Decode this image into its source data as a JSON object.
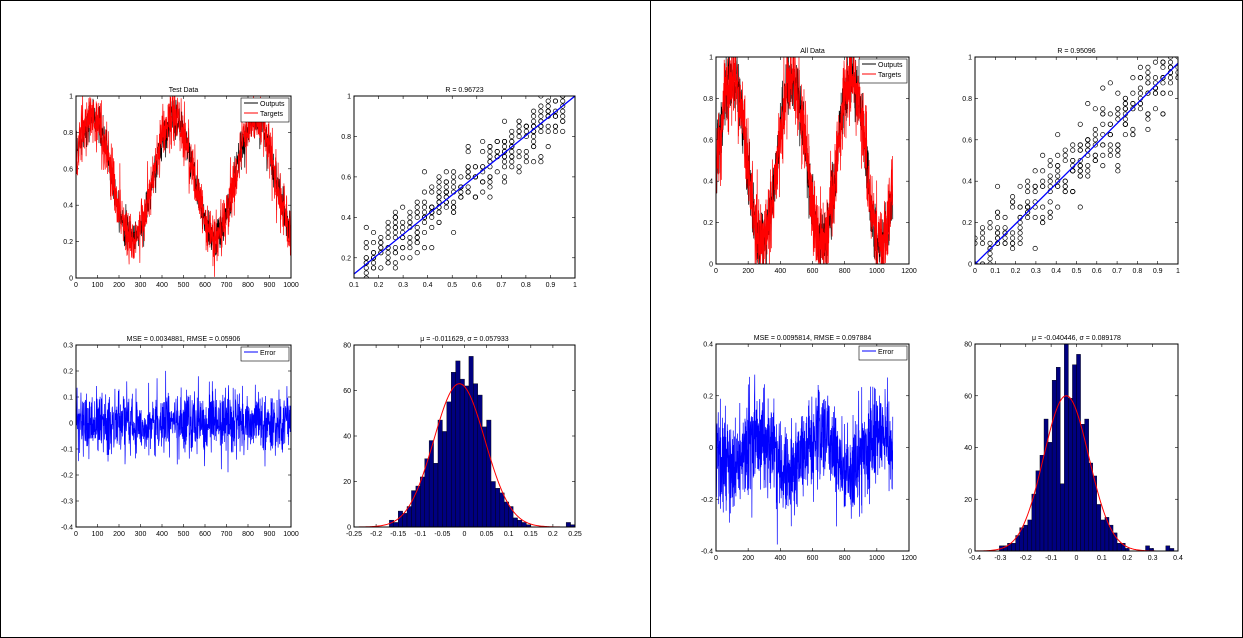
{
  "left": {
    "test_series": {
      "title": "Test Data",
      "legend": [
        "Outputs",
        "Targets"
      ],
      "colors": {
        "outputs": "#000000",
        "targets": "#ff0000"
      },
      "x_ticks": [
        "0",
        "100",
        "200",
        "300",
        "400",
        "500",
        "600",
        "700",
        "800",
        "900",
        "1000"
      ],
      "y_ticks": [
        "0",
        "0.2",
        "0.4",
        "0.6",
        "0.8",
        "1"
      ]
    },
    "test_regression": {
      "title": "R = 0.96723",
      "fit_color": "#0000ff",
      "x_ticks": [
        "0.1",
        "0.2",
        "0.3",
        "0.4",
        "0.5",
        "0.6",
        "0.7",
        "0.8",
        "0.9",
        "1"
      ],
      "y_ticks": [
        "0.2",
        "0.4",
        "0.6",
        "0.8",
        "1"
      ]
    },
    "test_error": {
      "title": "MSE = 0.0034881, RMSE = 0.05906",
      "legend": [
        "Error"
      ],
      "color": "#0000ff",
      "x_ticks": [
        "0",
        "100",
        "200",
        "300",
        "400",
        "500",
        "600",
        "700",
        "800",
        "900",
        "1000"
      ],
      "y_ticks": [
        "-0.4",
        "-0.3",
        "-0.2",
        "-0.1",
        "0",
        "0.1",
        "0.2",
        "0.3"
      ]
    },
    "test_histogram": {
      "title": "μ = -0.011629, σ = 0.057933",
      "bar_color": "#000080",
      "curve_color": "#ff0000",
      "x_ticks": [
        "-0.25",
        "-0.2",
        "-0.15",
        "-0.1",
        "-0.05",
        "0",
        "0.05",
        "0.1",
        "0.15",
        "0.2",
        "0.25"
      ],
      "y_ticks": [
        "0",
        "20",
        "40",
        "60",
        "80"
      ]
    }
  },
  "right": {
    "all_series": {
      "title": "All Data",
      "legend": [
        "Outputs",
        "Targets"
      ],
      "colors": {
        "outputs": "#000000",
        "targets": "#ff0000"
      },
      "x_ticks": [
        "0",
        "200",
        "400",
        "600",
        "800",
        "1000",
        "1200"
      ],
      "y_ticks": [
        "0",
        "0.2",
        "0.4",
        "0.6",
        "0.8",
        "1"
      ]
    },
    "all_regression": {
      "title": "R = 0.95096",
      "fit_color": "#0000ff",
      "x_ticks": [
        "0",
        "0.1",
        "0.2",
        "0.3",
        "0.4",
        "0.5",
        "0.6",
        "0.7",
        "0.8",
        "0.9",
        "1"
      ],
      "y_ticks": [
        "0",
        "0.2",
        "0.4",
        "0.6",
        "0.8",
        "1"
      ]
    },
    "all_error": {
      "title": "MSE = 0.0095814, RMSE = 0.097884",
      "legend": [
        "Error"
      ],
      "color": "#0000ff",
      "x_ticks": [
        "0",
        "200",
        "400",
        "600",
        "800",
        "1000",
        "1200"
      ],
      "y_ticks": [
        "-0.4",
        "-0.2",
        "0",
        "0.2",
        "0.4"
      ]
    },
    "all_histogram": {
      "title": "μ = -0.040446, σ = 0.089178",
      "bar_color": "#000080",
      "curve_color": "#ff0000",
      "x_ticks": [
        "-0.4",
        "-0.3",
        "-0.2",
        "-0.1",
        "0",
        "0.1",
        "0.2",
        "0.3",
        "0.4"
      ],
      "y_ticks": [
        "0",
        "20",
        "40",
        "60",
        "80"
      ]
    }
  },
  "chart_data": [
    {
      "type": "line",
      "title": "Test Data",
      "xlim": [
        0,
        1000
      ],
      "ylim": [
        0,
        1
      ],
      "series": [
        {
          "name": "Outputs",
          "model": {
            "mean": 0.55,
            "amp": 0.33,
            "period": 380,
            "phase": -20,
            "noise": 0.05,
            "n": 1000
          }
        },
        {
          "name": "Targets",
          "model": {
            "mean": 0.55,
            "amp": 0.33,
            "period": 380,
            "phase": -20,
            "noise": 0.08,
            "n": 1000
          }
        }
      ],
      "legend_position": "top-right"
    },
    {
      "type": "scatter",
      "title": "R = 0.96723",
      "xlim": [
        0.1,
        1
      ],
      "ylim": [
        0.1,
        1
      ],
      "x_range": [
        0.15,
        0.95
      ],
      "fit_line": [
        [
          0.1,
          0.12
        ],
        [
          1.0,
          1.0
        ]
      ],
      "spread": 0.07
    },
    {
      "type": "line",
      "title": "MSE = 0.0034881, RMSE = 0.05906",
      "xlim": [
        0,
        1000
      ],
      "ylim": [
        -0.4,
        0.3
      ],
      "series": [
        {
          "name": "Error",
          "model": {
            "mean": 0.0,
            "noise": 0.06,
            "n": 1000
          }
        }
      ],
      "legend_position": "top-right"
    },
    {
      "type": "bar",
      "title": "μ = -0.011629, σ = 0.057933",
      "xlim": [
        -0.25,
        0.25
      ],
      "ylim": [
        0,
        80
      ],
      "mu": -0.011629,
      "sigma": 0.057933,
      "bins": 50,
      "peak": 63
    },
    {
      "type": "line",
      "title": "All Data",
      "xlim": [
        0,
        1200
      ],
      "ylim": [
        0,
        1
      ],
      "series": [
        {
          "name": "Outputs",
          "model": {
            "mean": 0.5,
            "amp": 0.4,
            "period": 370,
            "phase": 10,
            "noise": 0.07,
            "n": 1100
          }
        },
        {
          "name": "Targets",
          "model": {
            "mean": 0.5,
            "amp": 0.4,
            "period": 370,
            "phase": 10,
            "noise": 0.1,
            "n": 1100
          }
        }
      ],
      "legend_position": "top-right"
    },
    {
      "type": "scatter",
      "title": "R = 0.95096",
      "xlim": [
        0,
        1
      ],
      "ylim": [
        0,
        1
      ],
      "x_range": [
        0.0,
        1.0
      ],
      "fit_line": [
        [
          0.0,
          0.0
        ],
        [
          1.0,
          0.97
        ]
      ],
      "spread": 0.1
    },
    {
      "type": "line",
      "title": "MSE = 0.0095814, RMSE = 0.097884",
      "xlim": [
        0,
        1200
      ],
      "ylim": [
        -0.4,
        0.4
      ],
      "series": [
        {
          "name": "Error",
          "model": {
            "mean": -0.02,
            "amp": 0.07,
            "period": 370,
            "phase": 180,
            "noise": 0.09,
            "n": 1100
          }
        }
      ],
      "legend_position": "top-right"
    },
    {
      "type": "bar",
      "title": "μ = -0.040446, σ = 0.089178",
      "xlim": [
        -0.4,
        0.4
      ],
      "ylim": [
        0,
        80
      ],
      "mu": -0.040446,
      "sigma": 0.089178,
      "bins": 50,
      "peak": 60
    }
  ]
}
